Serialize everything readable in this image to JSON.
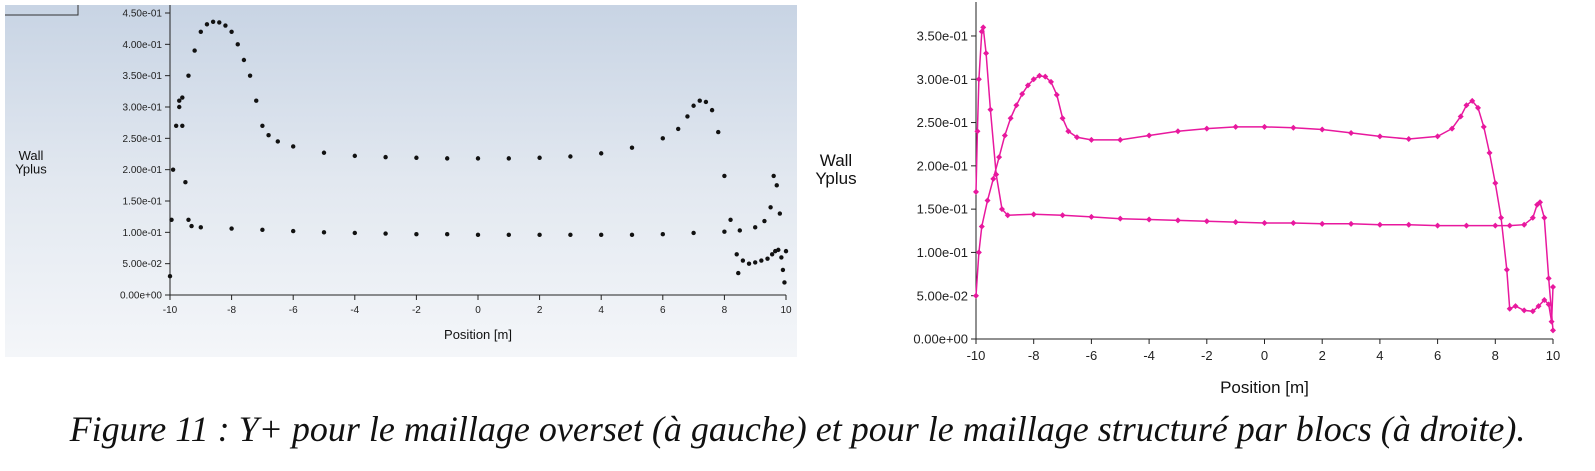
{
  "chart_data": [
    {
      "type": "scatter",
      "ylabel": "Wall\nYplus",
      "xlabel": "Position [m]",
      "x_ticks": [
        "-10",
        "-8",
        "-6",
        "-4",
        "-2",
        "0",
        "2",
        "4",
        "6",
        "8",
        "10"
      ],
      "y_ticks": [
        "0.00e+00",
        "5.00e-02",
        "1.00e-01",
        "1.50e-01",
        "2.00e-01",
        "2.50e-01",
        "3.00e-01",
        "3.50e-01",
        "4.00e-01",
        "4.50e-01"
      ],
      "xlim": [
        -10,
        10
      ],
      "ylim": [
        0,
        0.45
      ],
      "color": "#111111",
      "series": [
        {
          "points": [
            [
              -10,
              0.03
            ],
            [
              -9.95,
              0.12
            ],
            [
              -9.9,
              0.2
            ],
            [
              -9.8,
              0.27
            ],
            [
              -9.7,
              0.3
            ],
            [
              -9.6,
              0.315
            ],
            [
              -9.4,
              0.35
            ],
            [
              -9.2,
              0.39
            ],
            [
              -9.0,
              0.42
            ],
            [
              -8.8,
              0.432
            ],
            [
              -8.6,
              0.436
            ],
            [
              -8.4,
              0.435
            ],
            [
              -8.2,
              0.43
            ],
            [
              -8.0,
              0.42
            ],
            [
              -7.8,
              0.4
            ],
            [
              -7.6,
              0.375
            ],
            [
              -7.4,
              0.35
            ],
            [
              -7.2,
              0.31
            ],
            [
              -7.0,
              0.27
            ],
            [
              -6.8,
              0.255
            ],
            [
              -6.5,
              0.245
            ],
            [
              -6,
              0.237
            ],
            [
              -5,
              0.227
            ],
            [
              -4,
              0.222
            ],
            [
              -3,
              0.22
            ],
            [
              -2,
              0.219
            ],
            [
              -1,
              0.218
            ],
            [
              0,
              0.218
            ],
            [
              1,
              0.218
            ],
            [
              2,
              0.219
            ],
            [
              3,
              0.221
            ],
            [
              4,
              0.226
            ],
            [
              5,
              0.235
            ],
            [
              6,
              0.25
            ],
            [
              6.5,
              0.265
            ],
            [
              6.8,
              0.285
            ],
            [
              7.0,
              0.302
            ],
            [
              7.2,
              0.31
            ],
            [
              7.4,
              0.308
            ],
            [
              7.6,
              0.295
            ],
            [
              7.8,
              0.26
            ],
            [
              8.0,
              0.19
            ],
            [
              8.2,
              0.12
            ],
            [
              8.4,
              0.065
            ]
          ]
        },
        {
          "points": [
            [
              -9.7,
              0.31
            ],
            [
              -9.6,
              0.27
            ],
            [
              -9.5,
              0.18
            ],
            [
              -9.4,
              0.12
            ],
            [
              -9.3,
              0.11
            ],
            [
              -9,
              0.108
            ],
            [
              -8,
              0.106
            ],
            [
              -7,
              0.104
            ],
            [
              -6,
              0.102
            ],
            [
              -5,
              0.1
            ],
            [
              -4,
              0.099
            ],
            [
              -3,
              0.098
            ],
            [
              -2,
              0.097
            ],
            [
              -1,
              0.097
            ],
            [
              0,
              0.096
            ],
            [
              1,
              0.096
            ],
            [
              2,
              0.096
            ],
            [
              3,
              0.096
            ],
            [
              4,
              0.096
            ],
            [
              5,
              0.096
            ],
            [
              6,
              0.097
            ],
            [
              7,
              0.099
            ],
            [
              8,
              0.101
            ],
            [
              8.5,
              0.103
            ],
            [
              9,
              0.108
            ],
            [
              9.3,
              0.118
            ],
            [
              9.5,
              0.14
            ],
            [
              9.6,
              0.19
            ],
            [
              9.7,
              0.175
            ],
            [
              9.8,
              0.13
            ]
          ]
        },
        {
          "points": [
            [
              8.45,
              0.035
            ],
            [
              8.6,
              0.055
            ],
            [
              8.8,
              0.05
            ],
            [
              9.0,
              0.052
            ],
            [
              9.2,
              0.055
            ],
            [
              9.4,
              0.058
            ],
            [
              9.55,
              0.065
            ],
            [
              9.65,
              0.07
            ],
            [
              9.75,
              0.072
            ],
            [
              9.85,
              0.06
            ],
            [
              9.9,
              0.04
            ],
            [
              9.95,
              0.02
            ],
            [
              10,
              0.07
            ]
          ]
        }
      ]
    },
    {
      "type": "line",
      "ylabel": "Wall\nYplus",
      "xlabel": "Position [m]",
      "x_ticks": [
        "-10",
        "-8",
        "-6",
        "-4",
        "-2",
        "0",
        "2",
        "4",
        "6",
        "8",
        "10"
      ],
      "y_ticks": [
        "0.00e+00",
        "5.00e-02",
        "1.00e-01",
        "1.50e-01",
        "2.00e-01",
        "2.50e-01",
        "3.00e-01",
        "3.50e-01"
      ],
      "xlim": [
        -10,
        10
      ],
      "ylim": [
        0,
        0.38
      ],
      "color": "#e8189e",
      "series": [
        {
          "points": [
            [
              -10,
              0.05
            ],
            [
              -9.9,
              0.1
            ],
            [
              -9.8,
              0.13
            ],
            [
              -9.6,
              0.16
            ],
            [
              -9.4,
              0.185
            ],
            [
              -9.2,
              0.21
            ],
            [
              -9.0,
              0.235
            ],
            [
              -8.8,
              0.255
            ],
            [
              -8.6,
              0.27
            ],
            [
              -8.4,
              0.283
            ],
            [
              -8.2,
              0.293
            ],
            [
              -8.0,
              0.3
            ],
            [
              -7.8,
              0.304
            ],
            [
              -7.6,
              0.303
            ],
            [
              -7.4,
              0.297
            ],
            [
              -7.2,
              0.282
            ],
            [
              -7.0,
              0.255
            ],
            [
              -6.8,
              0.24
            ],
            [
              -6.5,
              0.233
            ],
            [
              -6,
              0.23
            ],
            [
              -5,
              0.23
            ],
            [
              -4,
              0.235
            ],
            [
              -3,
              0.24
            ],
            [
              -2,
              0.243
            ],
            [
              -1,
              0.245
            ],
            [
              0,
              0.245
            ],
            [
              1,
              0.244
            ],
            [
              2,
              0.242
            ],
            [
              3,
              0.238
            ],
            [
              4,
              0.234
            ],
            [
              5,
              0.231
            ],
            [
              6,
              0.234
            ],
            [
              6.5,
              0.243
            ],
            [
              6.8,
              0.257
            ],
            [
              7.0,
              0.27
            ],
            [
              7.2,
              0.275
            ],
            [
              7.4,
              0.267
            ],
            [
              7.6,
              0.245
            ],
            [
              7.8,
              0.215
            ],
            [
              8.0,
              0.18
            ],
            [
              8.2,
              0.14
            ],
            [
              8.4,
              0.08
            ],
            [
              8.5,
              0.035
            ],
            [
              8.7,
              0.038
            ],
            [
              9.0,
              0.033
            ],
            [
              9.3,
              0.032
            ],
            [
              9.5,
              0.038
            ],
            [
              9.7,
              0.045
            ],
            [
              9.85,
              0.04
            ],
            [
              9.95,
              0.02
            ],
            [
              10,
              0.06
            ]
          ]
        },
        {
          "points": [
            [
              -10,
              0.17
            ],
            [
              -9.95,
              0.24
            ],
            [
              -9.9,
              0.3
            ],
            [
              -9.8,
              0.355
            ],
            [
              -9.75,
              0.36
            ],
            [
              -9.65,
              0.33
            ],
            [
              -9.5,
              0.265
            ],
            [
              -9.3,
              0.19
            ],
            [
              -9.1,
              0.15
            ],
            [
              -8.9,
              0.143
            ],
            [
              -8,
              0.144
            ],
            [
              -7,
              0.143
            ],
            [
              -6,
              0.141
            ],
            [
              -5,
              0.139
            ],
            [
              -4,
              0.138
            ],
            [
              -3,
              0.137
            ],
            [
              -2,
              0.136
            ],
            [
              -1,
              0.135
            ],
            [
              0,
              0.134
            ],
            [
              1,
              0.134
            ],
            [
              2,
              0.133
            ],
            [
              3,
              0.133
            ],
            [
              4,
              0.132
            ],
            [
              5,
              0.132
            ],
            [
              6,
              0.131
            ],
            [
              7,
              0.131
            ],
            [
              8,
              0.131
            ],
            [
              8.5,
              0.131
            ],
            [
              9,
              0.132
            ],
            [
              9.3,
              0.14
            ],
            [
              9.45,
              0.155
            ],
            [
              9.55,
              0.158
            ],
            [
              9.7,
              0.14
            ],
            [
              9.85,
              0.07
            ],
            [
              10,
              0.01
            ]
          ]
        }
      ]
    }
  ],
  "caption": "Figure 11 : Y+ pour le maillage overset (à gauche) et pour le maillage structuré par blocs (à droite)."
}
